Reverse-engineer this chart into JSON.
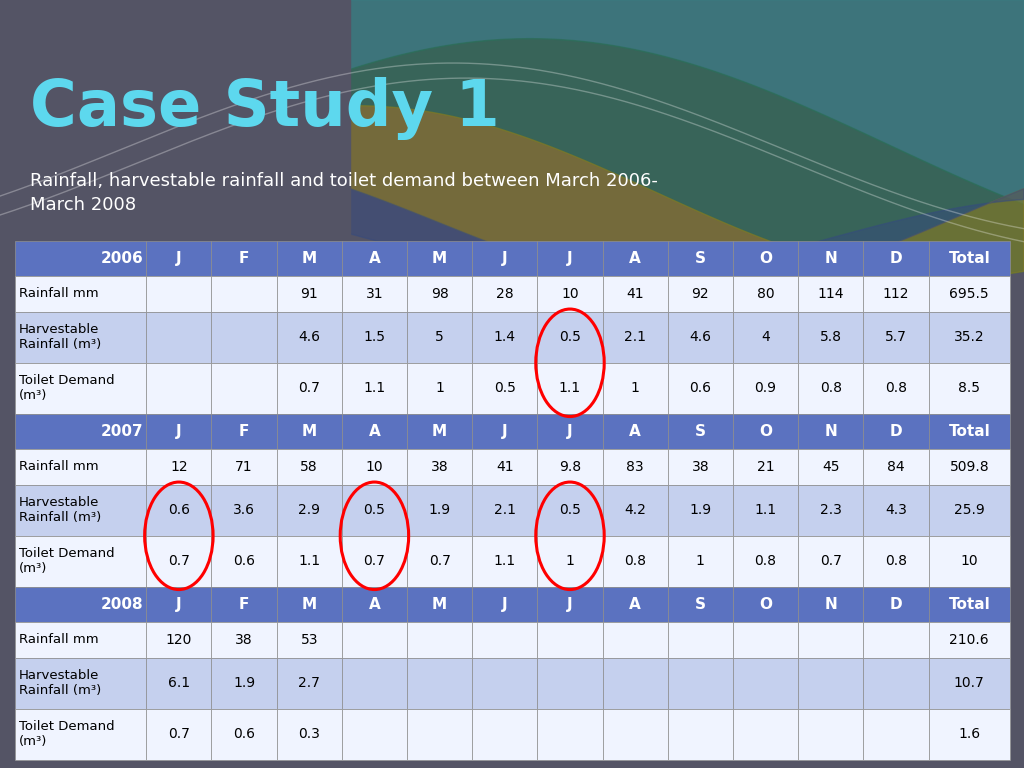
{
  "title": "Case Study 1",
  "subtitle": "Rainfall, harvestable rainfall and toilet demand between March 2006-\nMarch 2008",
  "background_color": "#545465",
  "header_bg": "#5b72c0",
  "header_text": "#ffffff",
  "row_bg_white": "#f0f4ff",
  "row_bg_blue": "#c5d0ee",
  "table_text": "#000000",
  "year_2006": {
    "header_label": "2006",
    "rainfall_mm": [
      "",
      "",
      "91",
      "31",
      "98",
      "28",
      "10",
      "41",
      "92",
      "80",
      "114",
      "112",
      "695.5"
    ],
    "harvestable": [
      "",
      "",
      "4.6",
      "1.5",
      "5",
      "1.4",
      "0.5",
      "2.1",
      "4.6",
      "4",
      "5.8",
      "5.7",
      "35.2"
    ],
    "toilet_demand": [
      "",
      "",
      "0.7",
      "1.1",
      "1",
      "0.5",
      "1.1",
      "1",
      "0.6",
      "0.9",
      "0.8",
      "0.8",
      "8.5"
    ]
  },
  "year_2007": {
    "header_label": "2007",
    "rainfall_mm": [
      "12",
      "71",
      "58",
      "10",
      "38",
      "41",
      "9.8",
      "83",
      "38",
      "21",
      "45",
      "84",
      "509.8"
    ],
    "harvestable": [
      "0.6",
      "3.6",
      "2.9",
      "0.5",
      "1.9",
      "2.1",
      "0.5",
      "4.2",
      "1.9",
      "1.1",
      "2.3",
      "4.3",
      "25.9"
    ],
    "toilet_demand": [
      "0.7",
      "0.6",
      "1.1",
      "0.7",
      "0.7",
      "1.1",
      "1",
      "0.8",
      "1",
      "0.8",
      "0.7",
      "0.8",
      "10"
    ]
  },
  "year_2008": {
    "header_label": "2008",
    "rainfall_mm": [
      "120",
      "38",
      "53",
      "",
      "",
      "",
      "",
      "",
      "",
      "",
      "",
      "",
      "210.6"
    ],
    "harvestable": [
      "6.1",
      "1.9",
      "2.7",
      "",
      "",
      "",
      "",
      "",
      "",
      "",
      "",
      "",
      "10.7"
    ],
    "toilet_demand": [
      "0.7",
      "0.6",
      "0.3",
      "",
      "",
      "",
      "",
      "",
      "",
      "",
      "",
      "",
      "1.6"
    ]
  },
  "months": [
    "J",
    "F",
    "M",
    "A",
    "M",
    "J",
    "J",
    "A",
    "S",
    "O",
    "N",
    "D"
  ]
}
